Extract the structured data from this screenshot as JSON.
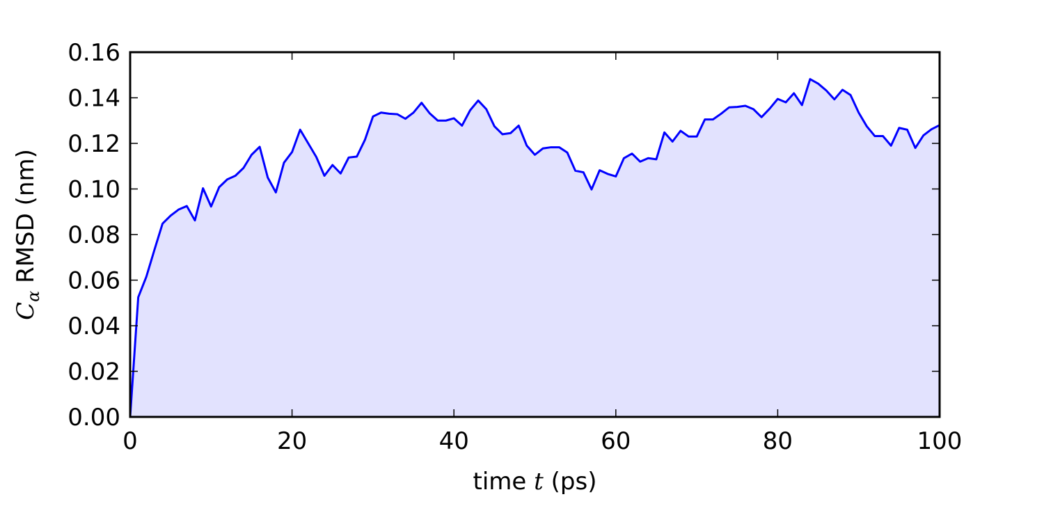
{
  "chart_data": {
    "type": "area",
    "title": "",
    "xlabel": {
      "prefix": "time ",
      "math": "t",
      "suffix": " (ps)"
    },
    "ylabel": {
      "math": "C",
      "subscript": "α",
      "suffix": " RMSD (nm)"
    },
    "xlim": [
      0,
      100
    ],
    "ylim": [
      0,
      0.16
    ],
    "xticks": [
      0,
      20,
      40,
      60,
      80,
      100
    ],
    "xtick_labels": [
      "0",
      "20",
      "40",
      "60",
      "80",
      "100"
    ],
    "yticks": [
      0,
      0.02,
      0.04,
      0.06,
      0.08,
      0.1,
      0.12,
      0.14,
      0.16
    ],
    "ytick_labels": [
      "0.00",
      "0.02",
      "0.04",
      "0.06",
      "0.08",
      "0.10",
      "0.12",
      "0.14",
      "0.16"
    ],
    "grid": false,
    "line_color": "#0000ff",
    "fill_color": "#e2e2fe",
    "series": [
      {
        "x": [
          0,
          1,
          2,
          3,
          4,
          5,
          6,
          7,
          8,
          9,
          10,
          11,
          12,
          13,
          14,
          15,
          16,
          17,
          18,
          19,
          20,
          21,
          22,
          23,
          24,
          25,
          26,
          27,
          28,
          29,
          30,
          31,
          32,
          33,
          34,
          35,
          36,
          37,
          38,
          39,
          40,
          41,
          42,
          43,
          44,
          45,
          46,
          47,
          48,
          49,
          50,
          51,
          52,
          53,
          54,
          55,
          56,
          57,
          58,
          59,
          60,
          61,
          62,
          63,
          64,
          65,
          66,
          67,
          68,
          69,
          70,
          71,
          72,
          73,
          74,
          75,
          76,
          77,
          78,
          79,
          80,
          81,
          82,
          83,
          84,
          85,
          86,
          87,
          88,
          89,
          90,
          91,
          92,
          93,
          94,
          95,
          96,
          97,
          98,
          99,
          100
        ],
        "values": [
          0.0,
          0.0525,
          0.0615,
          0.0733,
          0.0848,
          0.0883,
          0.091,
          0.0925,
          0.0862,
          0.1003,
          0.0923,
          0.1008,
          0.1042,
          0.1058,
          0.1092,
          0.115,
          0.1185,
          0.105,
          0.0985,
          0.1115,
          0.1162,
          0.126,
          0.12,
          0.114,
          0.1058,
          0.1105,
          0.1068,
          0.1138,
          0.1142,
          0.1215,
          0.1318,
          0.1335,
          0.133,
          0.1328,
          0.1308,
          0.1335,
          0.1378,
          0.1332,
          0.13,
          0.13,
          0.131,
          0.1278,
          0.1345,
          0.1388,
          0.135,
          0.1275,
          0.124,
          0.1245,
          0.1278,
          0.119,
          0.115,
          0.1178,
          0.1183,
          0.1183,
          0.116,
          0.108,
          0.1073,
          0.0998,
          0.1082,
          0.1066,
          0.1055,
          0.1135,
          0.1155,
          0.112,
          0.1135,
          0.113,
          0.1248,
          0.1208,
          0.1255,
          0.123,
          0.123,
          0.1305,
          0.1305,
          0.133,
          0.1358,
          0.136,
          0.1365,
          0.135,
          0.1315,
          0.1352,
          0.1395,
          0.138,
          0.142,
          0.1368,
          0.1482,
          0.1462,
          0.1432,
          0.1393,
          0.1435,
          0.1412,
          0.1335,
          0.1275,
          0.1232,
          0.1232,
          0.119,
          0.1268,
          0.126,
          0.118,
          0.1235,
          0.1262,
          0.128
        ]
      }
    ]
  }
}
